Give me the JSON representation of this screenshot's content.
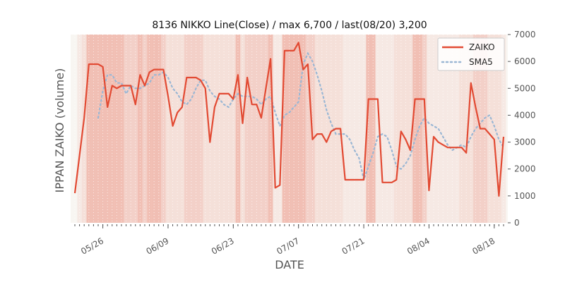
{
  "chart_data": {
    "type": "line",
    "title": "8136 NIKKO Line(Close) / max 6,700 / last(08/20) 3,200",
    "xlabel": "DATE",
    "ylabel": "IPPAN ZAIKO (volume)",
    "ylim": [
      0,
      7000
    ],
    "yticks": [
      "0",
      "1000",
      "2000",
      "3000",
      "4000",
      "5000",
      "6000",
      "7000"
    ],
    "y_axis_side": "right",
    "x_range": [
      "05/20",
      "08/20"
    ],
    "xticks": [
      "05/26",
      "06/09",
      "06/23",
      "07/07",
      "07/21",
      "08/04",
      "08/18"
    ],
    "legend": "top-right",
    "grid": true,
    "colors": {
      "zaiko": "#e24a33",
      "sma": "#9bb7d4",
      "shade": "#e24a33"
    },
    "series": [
      {
        "name": "ZAIKO",
        "style": "solid",
        "points": [
          [
            "05/20",
            1100
          ],
          [
            "05/22",
            3900
          ],
          [
            "05/23",
            5900
          ],
          [
            "05/24",
            5900
          ],
          [
            "05/25",
            5900
          ],
          [
            "05/26",
            5800
          ],
          [
            "05/27",
            4300
          ],
          [
            "05/28",
            5100
          ],
          [
            "05/29",
            5000
          ],
          [
            "05/30",
            5100
          ],
          [
            "05/31",
            5100
          ],
          [
            "06/01",
            5100
          ],
          [
            "06/02",
            4400
          ],
          [
            "06/03",
            5500
          ],
          [
            "06/04",
            5100
          ],
          [
            "06/05",
            5600
          ],
          [
            "06/06",
            5700
          ],
          [
            "06/07",
            5700
          ],
          [
            "06/08",
            5700
          ],
          [
            "06/09",
            4700
          ],
          [
            "06/10",
            3600
          ],
          [
            "06/11",
            4100
          ],
          [
            "06/12",
            4300
          ],
          [
            "06/13",
            5400
          ],
          [
            "06/14",
            5400
          ],
          [
            "06/15",
            5400
          ],
          [
            "06/16",
            5300
          ],
          [
            "06/17",
            5000
          ],
          [
            "06/18",
            3000
          ],
          [
            "06/19",
            4300
          ],
          [
            "06/20",
            4800
          ],
          [
            "06/21",
            4800
          ],
          [
            "06/22",
            4800
          ],
          [
            "06/23",
            4600
          ],
          [
            "06/24",
            5500
          ],
          [
            "06/25",
            3700
          ],
          [
            "06/26",
            5400
          ],
          [
            "06/27",
            4400
          ],
          [
            "06/28",
            4400
          ],
          [
            "06/29",
            3900
          ],
          [
            "06/30",
            5000
          ],
          [
            "07/01",
            6100
          ],
          [
            "07/02",
            1300
          ],
          [
            "07/03",
            1400
          ],
          [
            "07/04",
            6400
          ],
          [
            "07/05",
            6400
          ],
          [
            "07/06",
            6400
          ],
          [
            "07/07",
            6700
          ],
          [
            "07/08",
            5700
          ],
          [
            "07/09",
            5900
          ],
          [
            "07/10",
            3100
          ],
          [
            "07/11",
            3300
          ],
          [
            "07/12",
            3300
          ],
          [
            "07/13",
            3000
          ],
          [
            "07/14",
            3400
          ],
          [
            "07/15",
            3500
          ],
          [
            "07/16",
            3500
          ],
          [
            "07/17",
            1600
          ],
          [
            "07/18",
            1600
          ],
          [
            "07/19",
            1600
          ],
          [
            "07/20",
            1600
          ],
          [
            "07/21",
            1600
          ],
          [
            "07/22",
            4600
          ],
          [
            "07/23",
            4600
          ],
          [
            "07/24",
            4600
          ],
          [
            "07/25",
            1500
          ],
          [
            "07/26",
            1500
          ],
          [
            "07/27",
            1500
          ],
          [
            "07/28",
            1600
          ],
          [
            "07/29",
            3400
          ],
          [
            "07/30",
            3100
          ],
          [
            "07/31",
            2700
          ],
          [
            "08/01",
            4600
          ],
          [
            "08/02",
            4600
          ],
          [
            "08/03",
            4600
          ],
          [
            "08/04",
            1200
          ],
          [
            "08/05",
            3200
          ],
          [
            "08/06",
            3000
          ],
          [
            "08/07",
            2900
          ],
          [
            "08/08",
            2800
          ],
          [
            "08/09",
            2800
          ],
          [
            "08/10",
            2800
          ],
          [
            "08/11",
            2800
          ],
          [
            "08/12",
            2600
          ],
          [
            "08/13",
            5200
          ],
          [
            "08/14",
            4300
          ],
          [
            "08/15",
            3500
          ],
          [
            "08/16",
            3500
          ],
          [
            "08/17",
            3300
          ],
          [
            "08/18",
            3100
          ],
          [
            "08/19",
            1000
          ],
          [
            "08/20",
            3200
          ]
        ]
      },
      {
        "name": "SMA5",
        "style": "dotted",
        "points": [
          [
            "05/25",
            3900
          ],
          [
            "05/26",
            4900
          ],
          [
            "05/27",
            5500
          ],
          [
            "05/28",
            5500
          ],
          [
            "05/29",
            5200
          ],
          [
            "05/30",
            5200
          ],
          [
            "05/31",
            4800
          ],
          [
            "06/01",
            5100
          ],
          [
            "06/02",
            5000
          ],
          [
            "06/03",
            5000
          ],
          [
            "06/04",
            5100
          ],
          [
            "06/05",
            5200
          ],
          [
            "06/06",
            5500
          ],
          [
            "06/07",
            5500
          ],
          [
            "06/08",
            5600
          ],
          [
            "06/09",
            5400
          ],
          [
            "06/10",
            5000
          ],
          [
            "06/11",
            4800
          ],
          [
            "06/12",
            4500
          ],
          [
            "06/13",
            4400
          ],
          [
            "06/14",
            4600
          ],
          [
            "06/15",
            5000
          ],
          [
            "06/16",
            5300
          ],
          [
            "06/17",
            5300
          ],
          [
            "06/18",
            4900
          ],
          [
            "06/19",
            4700
          ],
          [
            "06/20",
            4600
          ],
          [
            "06/21",
            4400
          ],
          [
            "06/22",
            4300
          ],
          [
            "06/23",
            4600
          ],
          [
            "06/24",
            4800
          ],
          [
            "06/25",
            4700
          ],
          [
            "06/26",
            4700
          ],
          [
            "06/27",
            4700
          ],
          [
            "06/28",
            4600
          ],
          [
            "06/29",
            4400
          ],
          [
            "06/30",
            4600
          ],
          [
            "07/01",
            4700
          ],
          [
            "07/02",
            4100
          ],
          [
            "07/03",
            3600
          ],
          [
            "07/04",
            4000
          ],
          [
            "07/05",
            4100
          ],
          [
            "07/06",
            4300
          ],
          [
            "07/07",
            4500
          ],
          [
            "07/08",
            5900
          ],
          [
            "07/09",
            6300
          ],
          [
            "07/10",
            6000
          ],
          [
            "07/11",
            5500
          ],
          [
            "07/12",
            4900
          ],
          [
            "07/13",
            4200
          ],
          [
            "07/14",
            3700
          ],
          [
            "07/15",
            3300
          ],
          [
            "07/16",
            3300
          ],
          [
            "07/17",
            3300
          ],
          [
            "07/18",
            3100
          ],
          [
            "07/19",
            2700
          ],
          [
            "07/20",
            2400
          ],
          [
            "07/21",
            1600
          ],
          [
            "07/22",
            2100
          ],
          [
            "07/23",
            2600
          ],
          [
            "07/24",
            3200
          ],
          [
            "07/25",
            3300
          ],
          [
            "07/26",
            3200
          ],
          [
            "07/27",
            2700
          ],
          [
            "07/28",
            2100
          ],
          [
            "07/29",
            2000
          ],
          [
            "07/30",
            2200
          ],
          [
            "07/31",
            2500
          ],
          [
            "08/01",
            3100
          ],
          [
            "08/02",
            3600
          ],
          [
            "08/03",
            3900
          ],
          [
            "08/04",
            3700
          ],
          [
            "08/05",
            3600
          ],
          [
            "08/06",
            3500
          ],
          [
            "08/07",
            3200
          ],
          [
            "08/08",
            2900
          ],
          [
            "08/09",
            2700
          ],
          [
            "08/10",
            2800
          ],
          [
            "08/11",
            2900
          ],
          [
            "08/12",
            2800
          ],
          [
            "08/13",
            3200
          ],
          [
            "08/14",
            3500
          ],
          [
            "08/15",
            3700
          ],
          [
            "08/16",
            3900
          ],
          [
            "08/17",
            4000
          ],
          [
            "08/18",
            3600
          ],
          [
            "08/19",
            3100
          ],
          [
            "08/20",
            2800
          ]
        ]
      }
    ],
    "shaded_dates": {
      "strong": [
        "05/23",
        "05/24",
        "05/25",
        "05/26",
        "05/27",
        "05/28",
        "05/29",
        "05/30",
        "06/03",
        "06/05",
        "06/06",
        "06/07",
        "06/24",
        "07/01",
        "07/04",
        "07/05",
        "07/06",
        "07/07",
        "07/08",
        "07/22",
        "07/23",
        "08/01",
        "08/02"
      ],
      "medium": [
        "05/31",
        "06/01",
        "06/02",
        "06/04",
        "06/08",
        "06/13",
        "06/14",
        "06/15",
        "06/16",
        "06/26",
        "06/27",
        "06/28",
        "06/29",
        "06/30",
        "07/09",
        "07/10",
        "08/03",
        "08/14",
        "08/15",
        "08/16"
      ],
      "light": [
        "05/22",
        "06/09",
        "06/10",
        "06/11",
        "06/12",
        "06/17",
        "06/18",
        "06/19",
        "06/20",
        "06/21",
        "06/22",
        "06/23",
        "06/25",
        "07/11",
        "07/12",
        "07/13",
        "07/14",
        "07/15",
        "07/16",
        "07/28",
        "07/29",
        "07/30",
        "07/31",
        "08/11",
        "08/12",
        "08/13",
        "08/17",
        "08/18",
        "08/19"
      ],
      "faint": [
        "05/21",
        "07/02",
        "07/03",
        "07/17",
        "07/18",
        "07/19",
        "07/20",
        "07/21",
        "07/24",
        "07/25",
        "07/26",
        "07/27",
        "08/04",
        "08/05",
        "08/06",
        "08/07",
        "08/08",
        "08/09",
        "08/10",
        "08/20"
      ]
    }
  }
}
